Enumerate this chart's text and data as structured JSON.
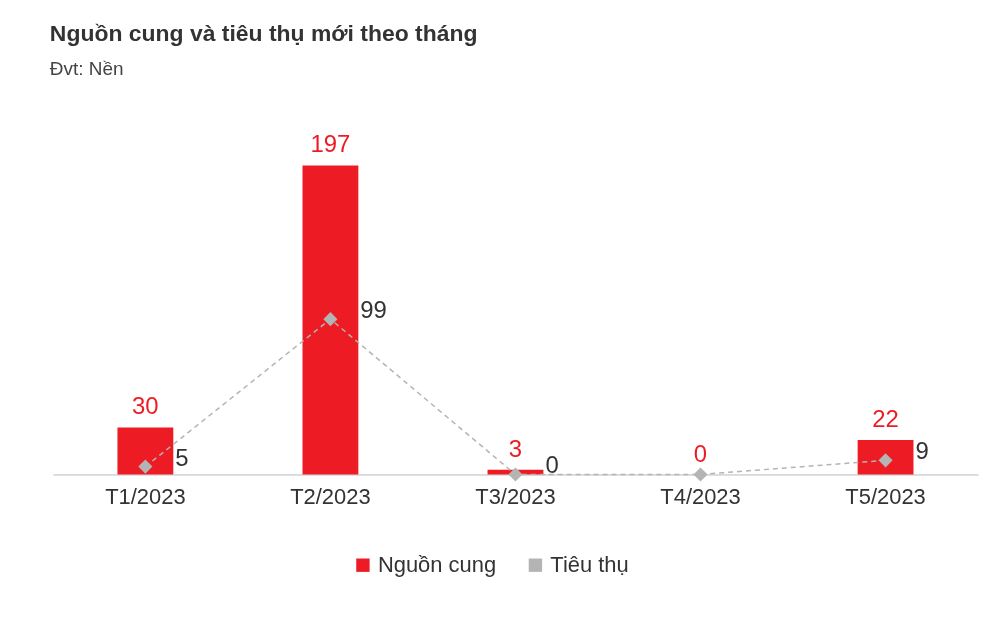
{
  "chart_data": {
    "type": "bar",
    "title": "Nguồn cung và tiêu thụ mới theo tháng",
    "subtitle": "Đvt: Nền",
    "categories": [
      "T1/2023",
      "T2/2023",
      "T3/2023",
      "T4/2023",
      "T5/2023"
    ],
    "series": [
      {
        "name": "Nguồn cung",
        "color": "#ed1c24",
        "values": [
          30,
          197,
          3,
          0,
          22
        ],
        "value_labels": [
          "30",
          "197",
          "3",
          "0",
          "22"
        ]
      },
      {
        "name": "Tiêu thụ",
        "type": "line",
        "color": "#b4b4b4",
        "marker": "diamond",
        "line_style": "dashed",
        "values": [
          5,
          99,
          0,
          0,
          9
        ],
        "value_labels": [
          "5",
          "99",
          "0",
          null,
          "9"
        ]
      }
    ],
    "legend": "bottom",
    "grid": false
  }
}
